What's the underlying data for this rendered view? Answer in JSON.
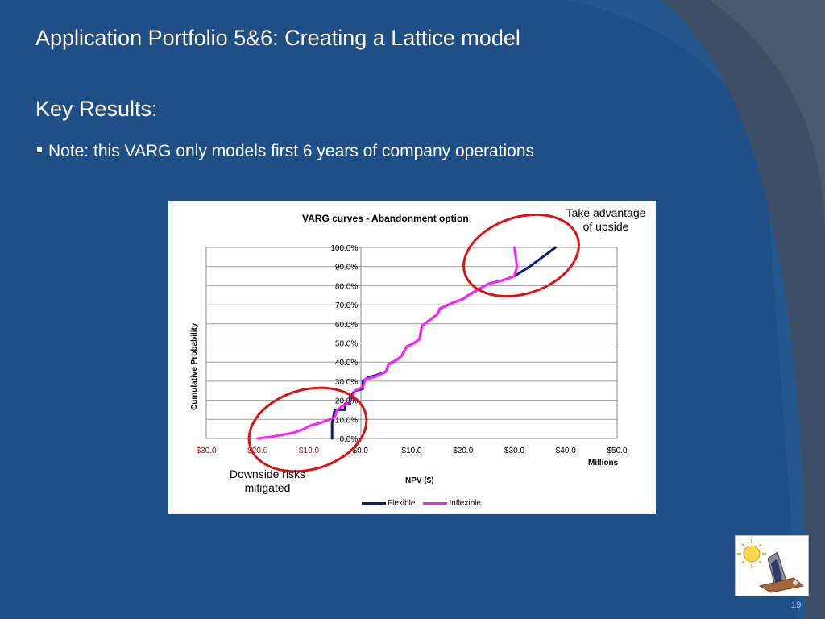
{
  "slide": {
    "title": "Application Portfolio 5&6: Creating a Lattice model",
    "subtitle": "Key Results:",
    "bullet": "Note: this VARG only models first 6 years of company operations",
    "page_number": "19"
  },
  "callouts": {
    "upside": "Take advantage of upside",
    "downside": "Downside risks mitigated"
  },
  "colors": {
    "slide_bg": "#1f4f86",
    "flexible": "#0a1a7a",
    "inflexible": "#ff1fff",
    "negative_ticks": "#cc0000",
    "rings": "#e01010"
  },
  "clipart_icon": "balance-scale-sun-icon",
  "chart_data": {
    "type": "line",
    "title": "VARG curves - Abandonment option",
    "xlabel": "NPV ($)",
    "ylabel": "Cumulative Probability",
    "x_units": "Millions",
    "xlim": [
      -30,
      50
    ],
    "ylim": [
      0,
      1
    ],
    "x_ticks": [
      {
        "value": -30,
        "label": "$30.0",
        "negative": true
      },
      {
        "value": -20,
        "label": "$20.0",
        "negative": true
      },
      {
        "value": -10,
        "label": "$10.0",
        "negative": true
      },
      {
        "value": 0,
        "label": "$0.0",
        "negative": false
      },
      {
        "value": 10,
        "label": "$10.0",
        "negative": false
      },
      {
        "value": 20,
        "label": "$20.0",
        "negative": false
      },
      {
        "value": 30,
        "label": "$30.0",
        "negative": false
      },
      {
        "value": 40,
        "label": "$40.0",
        "negative": false
      },
      {
        "value": 50,
        "label": "$50.0",
        "negative": false
      }
    ],
    "y_ticks": [
      {
        "value": 0.0,
        "label": "0.0%"
      },
      {
        "value": 0.1,
        "label": "10.0%"
      },
      {
        "value": 0.2,
        "label": "20.0%"
      },
      {
        "value": 0.3,
        "label": "30.0%"
      },
      {
        "value": 0.4,
        "label": "40.0%"
      },
      {
        "value": 0.5,
        "label": "50.0%"
      },
      {
        "value": 0.6,
        "label": "60.0%"
      },
      {
        "value": 0.7,
        "label": "70.0%"
      },
      {
        "value": 0.8,
        "label": "80.0%"
      },
      {
        "value": 0.9,
        "label": "90.0%"
      },
      {
        "value": 1.0,
        "label": "100.0%"
      }
    ],
    "grid": true,
    "legend_position": "bottom",
    "series": [
      {
        "name": "Flexible",
        "color": "#0a1a7a",
        "points": [
          [
            -5.5,
            0.0
          ],
          [
            -5.5,
            0.08
          ],
          [
            -5.2,
            0.12
          ],
          [
            -5.0,
            0.15
          ],
          [
            -3.0,
            0.15
          ],
          [
            -3.0,
            0.18
          ],
          [
            -2.0,
            0.18
          ],
          [
            -2.0,
            0.22
          ],
          [
            -1.0,
            0.25
          ],
          [
            0.5,
            0.26
          ],
          [
            0.5,
            0.3
          ],
          [
            1.5,
            0.32
          ],
          [
            3.0,
            0.33
          ],
          [
            5.0,
            0.35
          ],
          [
            5.5,
            0.39
          ],
          [
            7.0,
            0.41
          ],
          [
            8.0,
            0.43
          ],
          [
            9.0,
            0.48
          ],
          [
            10.5,
            0.5
          ],
          [
            11.5,
            0.52
          ],
          [
            12.0,
            0.59
          ],
          [
            13.5,
            0.62
          ],
          [
            15.0,
            0.65
          ],
          [
            15.5,
            0.68
          ],
          [
            18.0,
            0.71
          ],
          [
            20.0,
            0.73
          ],
          [
            21.0,
            0.75
          ],
          [
            23.0,
            0.78
          ],
          [
            25.0,
            0.81
          ],
          [
            28.0,
            0.83
          ],
          [
            30.0,
            0.85
          ],
          [
            33.0,
            0.9
          ],
          [
            36.0,
            0.96
          ],
          [
            38.0,
            1.0
          ]
        ]
      },
      {
        "name": "Inflexible",
        "color": "#ff1fff",
        "points": [
          [
            -20.0,
            0.0
          ],
          [
            -17.0,
            0.01
          ],
          [
            -15.0,
            0.02
          ],
          [
            -13.0,
            0.03
          ],
          [
            -11.0,
            0.05
          ],
          [
            -9.5,
            0.07
          ],
          [
            -8.0,
            0.08
          ],
          [
            -7.0,
            0.09
          ],
          [
            -5.0,
            0.11
          ],
          [
            -4.5,
            0.15
          ],
          [
            -3.5,
            0.17
          ],
          [
            -2.0,
            0.19
          ],
          [
            -1.5,
            0.22
          ],
          [
            -1.0,
            0.25
          ],
          [
            0.5,
            0.27
          ],
          [
            1.0,
            0.31
          ],
          [
            2.5,
            0.32
          ],
          [
            3.5,
            0.33
          ],
          [
            5.0,
            0.35
          ],
          [
            5.5,
            0.39
          ],
          [
            7.0,
            0.41
          ],
          [
            8.0,
            0.43
          ],
          [
            9.0,
            0.48
          ],
          [
            10.5,
            0.5
          ],
          [
            11.5,
            0.52
          ],
          [
            12.0,
            0.59
          ],
          [
            13.5,
            0.62
          ],
          [
            15.0,
            0.65
          ],
          [
            15.5,
            0.68
          ],
          [
            18.0,
            0.71
          ],
          [
            20.0,
            0.73
          ],
          [
            21.0,
            0.75
          ],
          [
            23.0,
            0.78
          ],
          [
            25.0,
            0.81
          ],
          [
            28.0,
            0.83
          ],
          [
            30.0,
            0.85
          ],
          [
            30.5,
            0.9
          ],
          [
            30.0,
            1.0
          ]
        ]
      }
    ]
  }
}
